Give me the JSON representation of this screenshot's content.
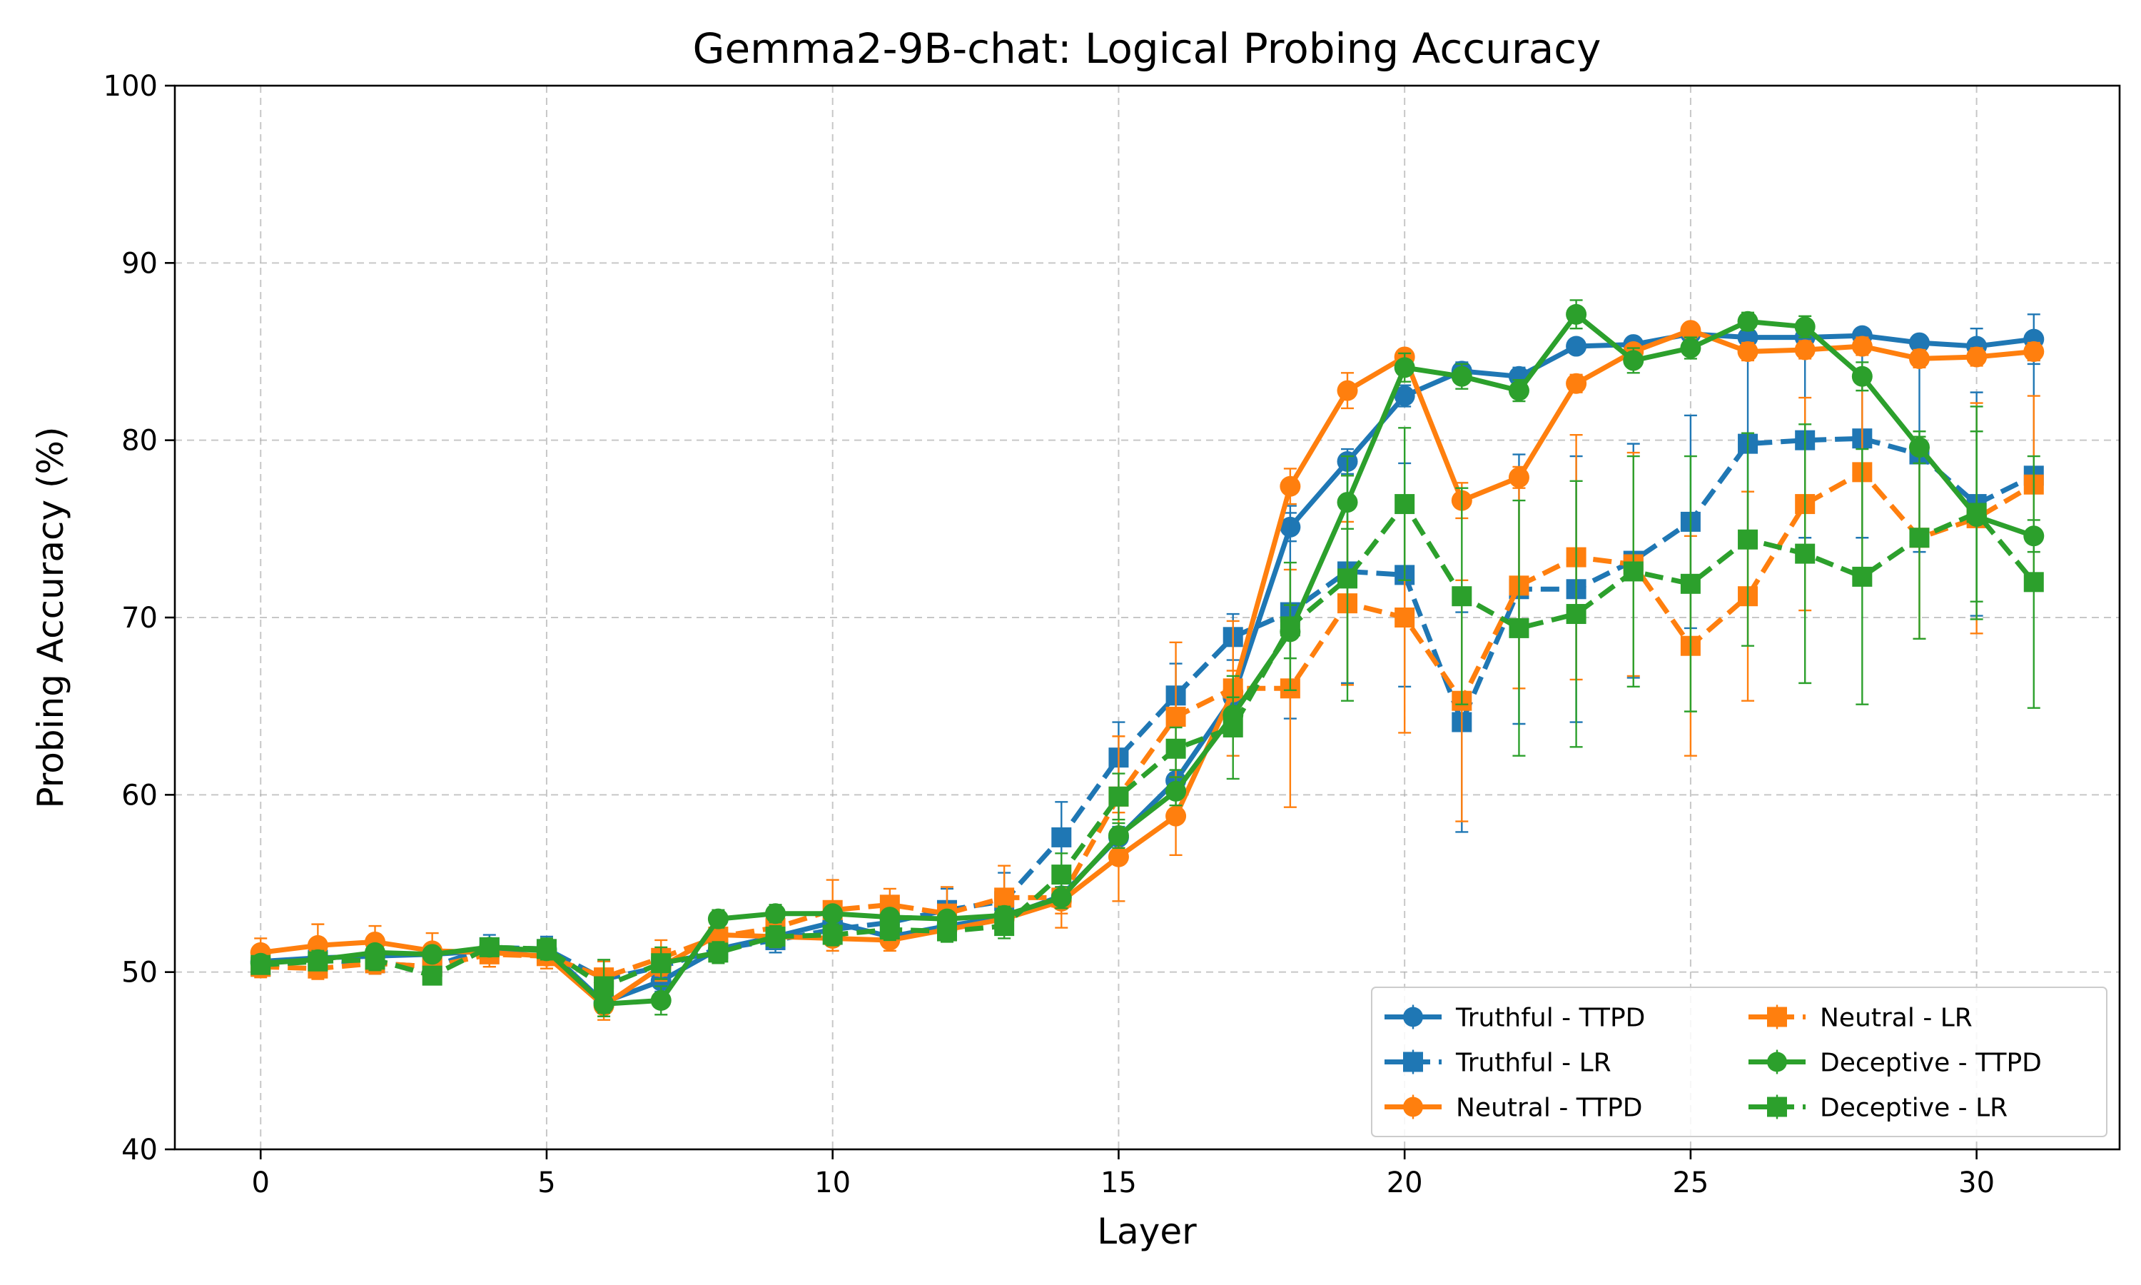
{
  "chart_data": {
    "type": "line",
    "title": "Gemma2-9B-chat: Logical Probing Accuracy",
    "xlabel": "Layer",
    "ylabel": "Probing Accuracy (%)",
    "xlim": [
      -1.5,
      32.5
    ],
    "ylim": [
      40,
      100
    ],
    "xticks": [
      0,
      5,
      10,
      15,
      20,
      25,
      30
    ],
    "yticks": [
      40,
      50,
      60,
      70,
      80,
      90,
      100
    ],
    "grid": true,
    "legend_position": "lower-right",
    "legend_columns": 2,
    "x": [
      0,
      1,
      2,
      3,
      4,
      5,
      6,
      7,
      8,
      9,
      10,
      11,
      12,
      13,
      14,
      15,
      16,
      17,
      18,
      19,
      20,
      21,
      22,
      23,
      24,
      25,
      26,
      27,
      28,
      29,
      30,
      31
    ],
    "series": [
      {
        "name": "Truthful - TTPD",
        "color": "#1f77b4",
        "marker": "circle",
        "linestyle": "solid",
        "values": [
          50.6,
          50.8,
          50.9,
          51.0,
          51.2,
          51.3,
          48.3,
          49.5,
          51.3,
          52.0,
          52.8,
          52.0,
          52.6,
          53.1,
          54.3,
          57.6,
          60.8,
          65.5,
          75.1,
          78.8,
          82.5,
          83.9,
          83.6,
          85.3,
          85.4,
          86.0,
          85.8,
          85.8,
          85.9,
          85.5,
          85.3,
          85.7
        ],
        "errors": [
          0.3,
          0.3,
          0.3,
          0.3,
          0.3,
          0.4,
          0.5,
          0.6,
          0.4,
          0.4,
          0.4,
          0.4,
          0.4,
          0.4,
          0.5,
          0.6,
          0.6,
          0.8,
          0.8,
          0.7,
          0.6,
          0.5,
          0.5,
          0.4,
          0.4,
          0.4,
          0.4,
          0.4,
          0.4,
          0.4,
          1.0,
          1.4
        ]
      },
      {
        "name": "Truthful - LR",
        "color": "#1f77b4",
        "marker": "square",
        "linestyle": "dashed",
        "values": [
          50.3,
          50.7,
          50.5,
          50.3,
          51.4,
          51.3,
          49.6,
          50.3,
          51.3,
          51.8,
          52.4,
          52.8,
          53.5,
          54.0,
          57.6,
          62.1,
          65.6,
          68.9,
          70.3,
          72.6,
          72.4,
          64.1,
          71.6,
          71.6,
          73.2,
          75.4,
          79.8,
          80.0,
          80.1,
          79.2,
          76.4,
          78.0
        ],
        "errors": [
          0.5,
          0.6,
          0.6,
          0.7,
          0.7,
          0.7,
          1.0,
          0.9,
          0.6,
          0.7,
          0.8,
          0.9,
          1.2,
          1.6,
          2.0,
          2.0,
          1.8,
          1.3,
          6.0,
          6.3,
          6.3,
          6.2,
          7.6,
          7.5,
          6.6,
          6.0,
          5.3,
          5.5,
          5.6,
          5.5,
          6.3,
          6.5
        ]
      },
      {
        "name": "Neutral - TTPD",
        "color": "#ff7f0e",
        "marker": "circle",
        "linestyle": "solid",
        "values": [
          51.1,
          51.5,
          51.7,
          51.2,
          51.1,
          50.9,
          48.1,
          50.3,
          52.1,
          52.0,
          51.9,
          51.8,
          52.4,
          53.0,
          54.0,
          56.5,
          58.8,
          65.8,
          77.4,
          82.8,
          84.7,
          76.6,
          77.9,
          83.2,
          85.0,
          86.2,
          85.0,
          85.1,
          85.3,
          84.6,
          84.7,
          85.0
        ],
        "errors": [
          0.8,
          1.2,
          0.9,
          1.0,
          0.8,
          0.7,
          0.8,
          0.8,
          0.6,
          0.6,
          0.7,
          0.6,
          0.6,
          0.6,
          0.7,
          2.5,
          2.2,
          1.2,
          1.0,
          1.0,
          0.4,
          1.0,
          0.6,
          0.5,
          0.4,
          0.4,
          0.5,
          0.5,
          0.5,
          0.5,
          0.5,
          0.5
        ]
      },
      {
        "name": "Neutral - LR",
        "color": "#ff7f0e",
        "marker": "square",
        "linestyle": "dashed",
        "values": [
          50.3,
          50.2,
          50.5,
          50.3,
          51.0,
          50.9,
          49.7,
          50.8,
          52.0,
          52.5,
          53.5,
          53.8,
          53.3,
          54.2,
          54.2,
          59.9,
          64.4,
          66.0,
          66.0,
          70.8,
          70.0,
          65.3,
          71.8,
          73.4,
          73.0,
          68.4,
          71.2,
          76.4,
          78.2,
          74.5,
          75.6,
          77.5
        ],
        "errors": [
          0.6,
          0.6,
          0.6,
          0.7,
          0.7,
          0.7,
          0.9,
          1.0,
          0.8,
          1.0,
          1.7,
          0.9,
          1.5,
          1.8,
          1.7,
          3.4,
          4.2,
          3.8,
          6.7,
          4.6,
          6.5,
          6.8,
          5.8,
          6.9,
          6.3,
          6.2,
          5.9,
          6.0,
          5.7,
          5.7,
          6.5,
          5.0
        ]
      },
      {
        "name": "Deceptive - TTPD",
        "color": "#2ca02c",
        "marker": "circle",
        "linestyle": "solid",
        "values": [
          50.5,
          50.7,
          51.1,
          51.0,
          51.4,
          51.2,
          48.2,
          48.4,
          53.0,
          53.3,
          53.3,
          53.1,
          53.0,
          53.2,
          54.2,
          57.7,
          60.2,
          64.5,
          69.2,
          76.5,
          84.1,
          83.6,
          82.8,
          87.1,
          84.5,
          85.2,
          86.7,
          86.4,
          83.6,
          79.6,
          75.7,
          74.6
        ],
        "errors": [
          0.4,
          0.5,
          0.4,
          0.4,
          0.4,
          0.4,
          0.7,
          0.8,
          0.5,
          0.5,
          0.4,
          0.4,
          0.4,
          0.5,
          0.6,
          0.7,
          0.8,
          1.0,
          1.5,
          1.5,
          0.8,
          0.7,
          0.6,
          0.8,
          0.7,
          0.6,
          0.5,
          0.6,
          0.8,
          0.9,
          4.8,
          0.9
        ]
      },
      {
        "name": "Deceptive - LR",
        "color": "#2ca02c",
        "marker": "square",
        "linestyle": "dashed",
        "values": [
          50.4,
          50.6,
          50.7,
          49.8,
          51.4,
          51.3,
          49.2,
          50.5,
          51.1,
          52.0,
          52.1,
          52.4,
          52.3,
          52.6,
          55.5,
          59.9,
          62.6,
          63.8,
          69.5,
          72.2,
          76.4,
          71.2,
          69.4,
          70.2,
          72.6,
          71.9,
          74.4,
          73.6,
          72.3,
          74.5,
          75.9,
          72.0
        ],
        "errors": [
          0.5,
          0.5,
          0.6,
          0.5,
          0.5,
          0.6,
          1.5,
          0.9,
          0.6,
          0.6,
          0.6,
          0.6,
          0.6,
          0.7,
          1.2,
          1.3,
          1.2,
          2.9,
          3.6,
          6.9,
          4.3,
          6.1,
          7.2,
          7.5,
          6.5,
          7.2,
          6.0,
          7.3,
          7.2,
          5.7,
          6.0,
          7.1
        ]
      }
    ]
  }
}
